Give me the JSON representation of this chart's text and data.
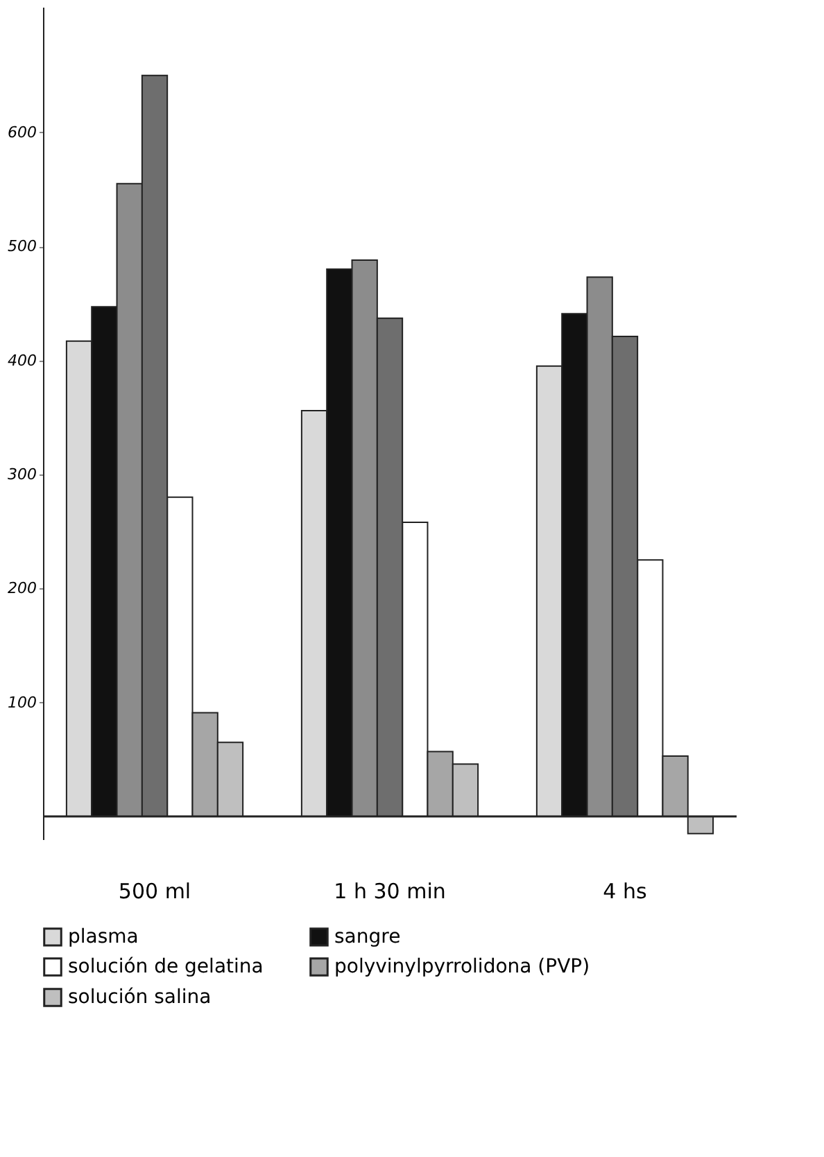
{
  "chart_data": {
    "type": "bar",
    "categories": [
      "500 ml",
      "1 h  30 min",
      "4 hs"
    ],
    "series": [
      {
        "name": "plasma",
        "color": "#d9d9d9",
        "values": [
          417,
          356,
          395
        ]
      },
      {
        "name": "sangre",
        "color": "#111111",
        "values": [
          447,
          480,
          441
        ]
      },
      {
        "color": "#8c8c8c",
        "values": [
          555,
          488,
          473
        ]
      },
      {
        "color": "#6e6e6e",
        "values": [
          650,
          437,
          421
        ]
      },
      {
        "name": "solución de gelatina",
        "color": "#ffffff",
        "values": [
          280,
          258,
          225
        ]
      },
      {
        "name": "polyvinylpyrrolidona (PVP)",
        "color": "#a6a6a6",
        "values": [
          91,
          57,
          53
        ]
      },
      {
        "name": "solución salina",
        "color": "#bfbfbf",
        "values": [
          65,
          46,
          -15
        ]
      }
    ],
    "ylim": [
      -20,
      710
    ],
    "yticks": [
      100,
      200,
      300,
      400,
      500,
      600
    ],
    "ref_lines": [
      {
        "axis": "y",
        "value": 0
      }
    ],
    "grid": false,
    "legend": "bottom"
  }
}
